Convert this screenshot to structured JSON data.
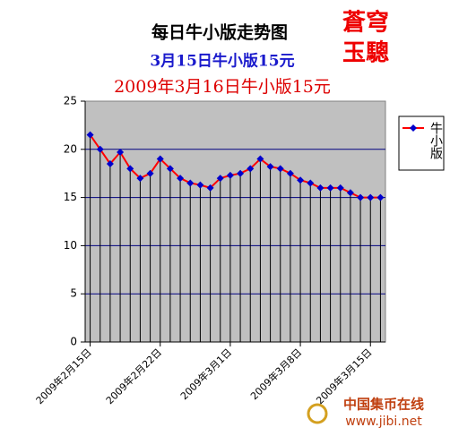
{
  "chart_data": {
    "type": "line",
    "title": "每日牛小版走势图",
    "subtitle": "3月15日牛小版15元",
    "annotation": "2009年3月16日牛小版15元",
    "logo": [
      "蒼穹",
      "玉驄"
    ],
    "watermark": [
      "中国集币在线",
      "www.jibi.net"
    ],
    "categories": [
      "2009年2月15日",
      null,
      null,
      null,
      null,
      null,
      null,
      "2009年2月22日",
      null,
      null,
      null,
      null,
      null,
      null,
      "2009年3月1日",
      null,
      null,
      null,
      null,
      null,
      null,
      "2009年3月8日",
      null,
      null,
      null,
      null,
      null,
      null,
      "2009年3月15日",
      null
    ],
    "series": [
      {
        "name": "牛小版",
        "color": "#ff0000",
        "marker_color": "#0000cc",
        "values": [
          21.5,
          20,
          18.5,
          19.7,
          18,
          17,
          17.5,
          19,
          18,
          17,
          16.5,
          16.3,
          16,
          17,
          17.3,
          17.5,
          18,
          19,
          18.2,
          18,
          17.5,
          16.8,
          16.5,
          16,
          16,
          16,
          15.5,
          15,
          15,
          15
        ]
      }
    ],
    "ylim": [
      0,
      25
    ],
    "yticks": [
      0,
      5,
      10,
      15,
      20,
      25
    ],
    "grid": true,
    "legend": "right"
  }
}
